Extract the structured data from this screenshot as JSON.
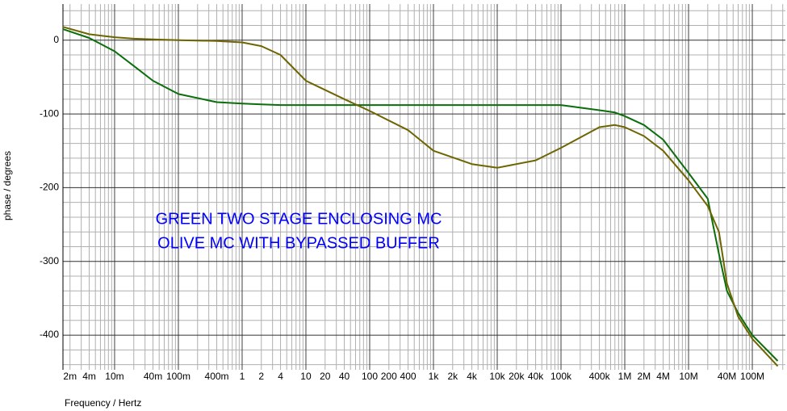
{
  "chart_data": {
    "type": "line",
    "x_label": "Frequency / Hertz",
    "y_label": "phase / degrees",
    "annotations": [
      "GREEN TWO STAGE ENCLOSING MC",
      "OLIVE MC WITH BYPASSED BUFFER"
    ],
    "annotation_color": "#0000ff",
    "x_scale": "log",
    "grid": true,
    "x": [
      0.00155,
      0.004,
      0.01,
      0.02,
      0.04,
      0.1,
      0.4,
      1,
      2,
      4,
      10,
      40,
      100,
      400,
      1000,
      4000,
      10000,
      40000,
      100000,
      400000,
      700000,
      1000000,
      2000000,
      4000000,
      10000000,
      20000000,
      30000000,
      40000000,
      60000000,
      100000000,
      250000000
    ],
    "series": [
      {
        "name": "GREEN",
        "color": "#0a6e0a",
        "values": [
          15,
          3,
          -15,
          -35,
          -55,
          -73,
          -84,
          -86,
          -87,
          -88,
          -88,
          -88,
          -88,
          -88,
          -88,
          -88,
          -88,
          -88,
          -88,
          -95,
          -98,
          -103,
          -115,
          -135,
          -180,
          -215,
          -290,
          -340,
          -370,
          -400,
          -435
        ]
      },
      {
        "name": "OLIVE",
        "color": "#6e6400",
        "values": [
          18,
          8,
          4,
          2,
          1,
          0,
          -1,
          -3,
          -8,
          -20,
          -55,
          -80,
          -96,
          -122,
          -150,
          -168,
          -173,
          -163,
          -146,
          -118,
          -115,
          -118,
          -130,
          -150,
          -190,
          -225,
          -260,
          -330,
          -375,
          -405,
          -442
        ]
      }
    ],
    "xlim": [
      0.00155,
      330000000
    ],
    "ylim": [
      -447,
      49
    ],
    "xticks": [
      {
        "value": 0.002,
        "label": "2m"
      },
      {
        "value": 0.004,
        "label": "4m"
      },
      {
        "value": 0.01,
        "label": "10m"
      },
      {
        "value": 0.04,
        "label": "40m"
      },
      {
        "value": 0.1,
        "label": "100m"
      },
      {
        "value": 0.4,
        "label": "400m"
      },
      1,
      2,
      4,
      10,
      20,
      40,
      100,
      200,
      400,
      {
        "value": 1000,
        "label": "1k"
      },
      {
        "value": 2000,
        "label": "2k"
      },
      {
        "value": 4000,
        "label": "4k"
      },
      {
        "value": 10000,
        "label": "10k"
      },
      {
        "value": 20000,
        "label": "20k"
      },
      {
        "value": 40000,
        "label": "40k"
      },
      {
        "value": 100000,
        "label": "100k"
      },
      {
        "value": 400000,
        "label": "400k"
      },
      {
        "value": 1000000,
        "label": "1M"
      },
      {
        "value": 2000000,
        "label": "2M"
      },
      {
        "value": 4000000,
        "label": "4M"
      },
      {
        "value": 10000000,
        "label": "10M"
      },
      {
        "value": 40000000,
        "label": "40M"
      },
      {
        "value": 100000000,
        "label": "100M"
      }
    ],
    "yticks": [
      0,
      -100,
      -200,
      -300,
      -400
    ]
  }
}
